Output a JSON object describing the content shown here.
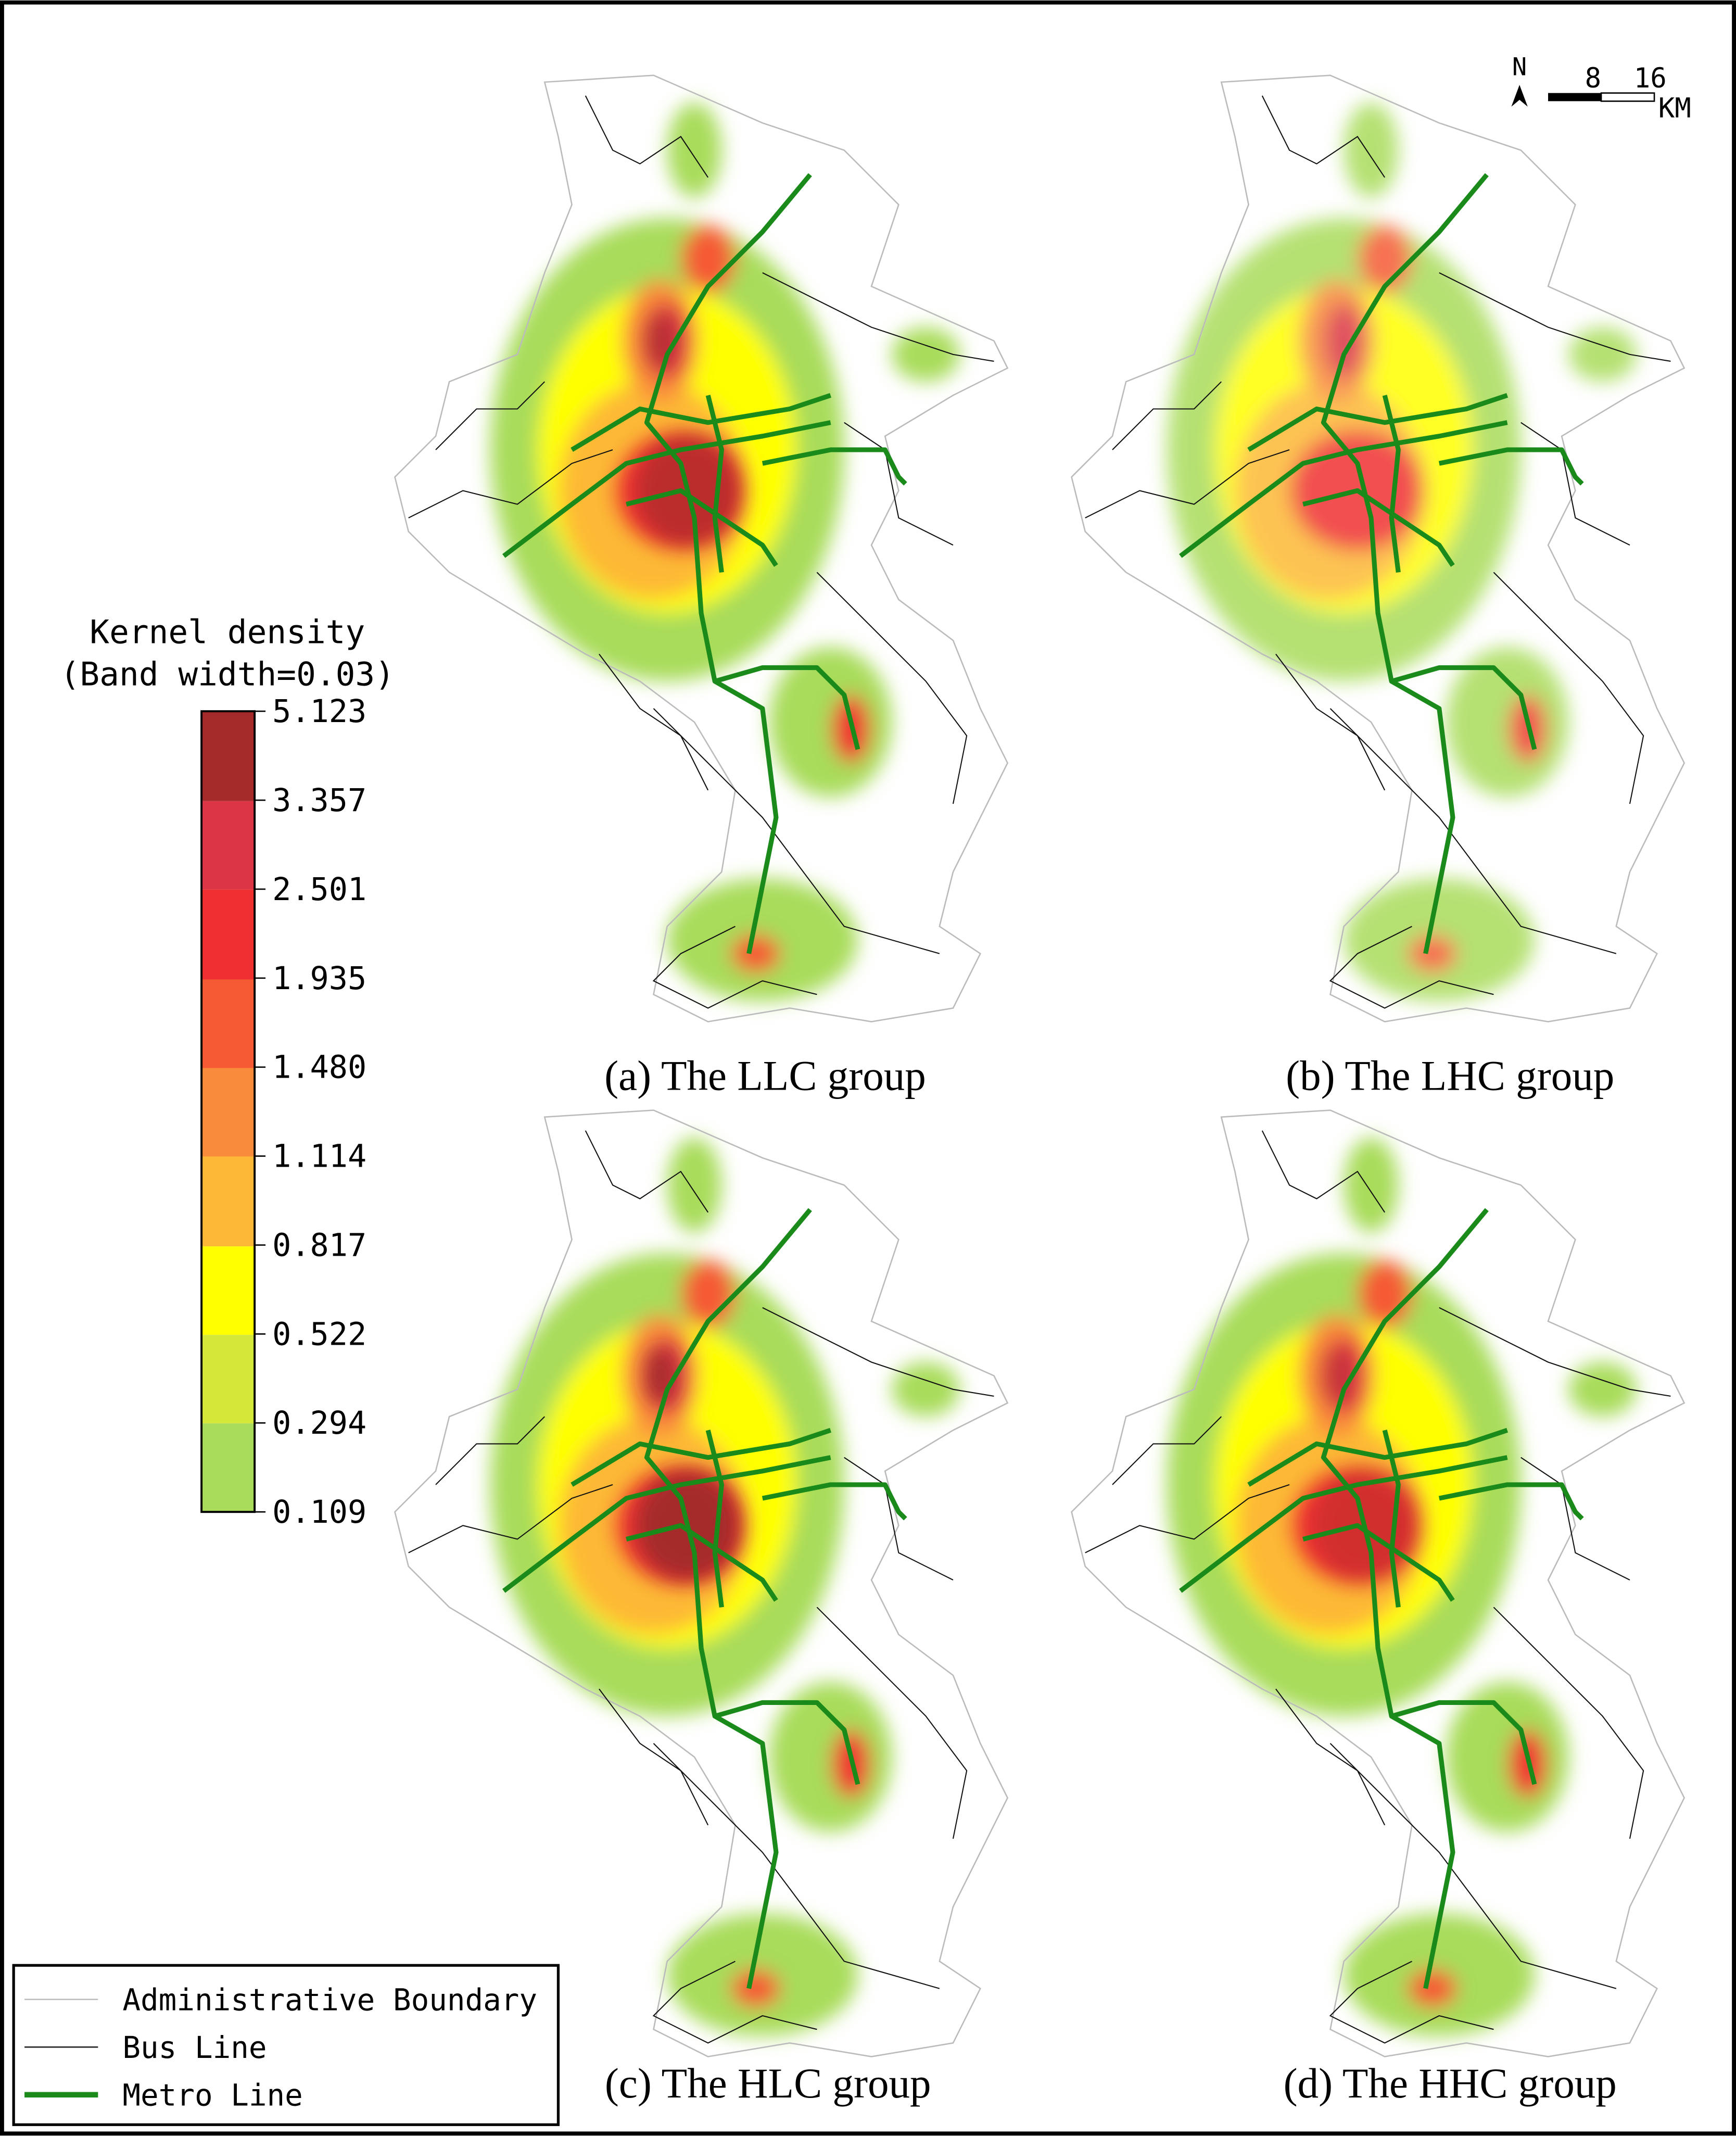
{
  "legend": {
    "title": "Kernel density",
    "subtitle": "(Band width=0.03)",
    "breaks": [
      "5.123",
      "3.357",
      "2.501",
      "1.935",
      "1.480",
      "1.114",
      "0.817",
      "0.522",
      "0.294",
      "0.109"
    ]
  },
  "panels": [
    {
      "caption": "(a) The LLC group"
    },
    {
      "caption": "(b) The LHC group"
    },
    {
      "caption": "(c) The HLC group"
    },
    {
      "caption": "(d) The HHC group"
    }
  ],
  "scale_bar": {
    "north": "N",
    "labels": [
      "8",
      "16"
    ],
    "unit": "KM"
  },
  "map_legend": [
    {
      "label": "Administrative Boundary"
    },
    {
      "label": "Bus Line"
    },
    {
      "label": "Metro Line"
    }
  ]
}
